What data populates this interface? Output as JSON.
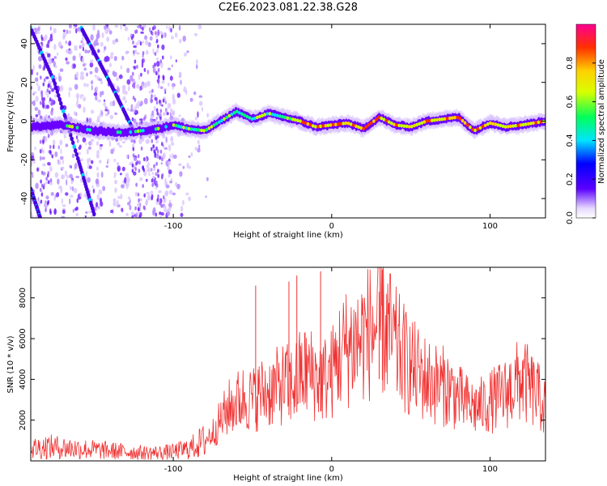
{
  "title": "C2E6.2023.081.22.38.G28",
  "colors": {
    "snr_line": "#f03232",
    "spectrogram_ridge_low": "#6a00ff",
    "spectrogram_ridge_high": "#ff2020",
    "scatter": "#9b6bff"
  },
  "chart_data": [
    {
      "type": "heatmap",
      "xlabel": "Height of straight line (km)",
      "ylabel": "Frequency (Hz)",
      "xlim": [
        -190,
        135
      ],
      "ylim": [
        -50,
        50
      ],
      "x_ticks": [
        -100,
        0,
        100
      ],
      "y_ticks": [
        -40,
        -20,
        0,
        20,
        40
      ],
      "colorbar": {
        "label": "Normalized spectral amplitude",
        "range": [
          0.0,
          1.0
        ],
        "ticks": [
          "0.0",
          "0.2",
          "0.4",
          "0.6",
          "0.8"
        ]
      },
      "ridge": {
        "x": [
          -190,
          -170,
          -150,
          -130,
          -110,
          -100,
          -90,
          -80,
          -70,
          -60,
          -50,
          -40,
          -30,
          -20,
          -10,
          0,
          10,
          20,
          30,
          40,
          50,
          60,
          70,
          80,
          90,
          100,
          110,
          120,
          135
        ],
        "y": [
          -3,
          -2,
          -5,
          -6,
          -4,
          -2,
          -4,
          -5,
          0,
          5,
          1,
          4,
          2,
          0,
          -3,
          -2,
          -1,
          -4,
          2,
          -2,
          -3,
          0,
          1,
          2,
          -5,
          -1,
          -3,
          -2,
          0
        ]
      },
      "diagonal_tracks": [
        {
          "x": [
            -190,
            -175,
            -160,
            -150
          ],
          "y": [
            48,
            20,
            -20,
            -48
          ]
        },
        {
          "x": [
            -158,
            -140,
            -125
          ],
          "y": [
            48,
            20,
            -5
          ]
        },
        {
          "x": [
            -190,
            -184
          ],
          "y": [
            -35,
            -50
          ]
        }
      ]
    },
    {
      "type": "line",
      "xlabel": "Height of straight line (km)",
      "ylabel": "SNR (10 * v/v)",
      "xlim": [
        -190,
        135
      ],
      "ylim": [
        0,
        9500
      ],
      "x_ticks": [
        -100,
        0,
        100
      ],
      "y_ticks": [
        2000,
        4000,
        6000,
        8000
      ],
      "series": [
        {
          "x": [
            -190,
            -180,
            -170,
            -160,
            -150,
            -140,
            -130,
            -120,
            -110,
            -100,
            -90,
            -80,
            -75,
            -70,
            -65,
            -60,
            -55,
            -50,
            -45,
            -40,
            -35,
            -30,
            -25,
            -20,
            -15,
            -10,
            -5,
            0,
            5,
            10,
            15,
            20,
            25,
            30,
            35,
            40,
            45,
            50,
            55,
            60,
            65,
            70,
            75,
            80,
            85,
            90,
            95,
            100,
            105,
            110,
            115,
            120,
            125,
            130,
            135
          ],
          "y": [
            600,
            700,
            650,
            600,
            550,
            500,
            450,
            400,
            400,
            450,
            600,
            1000,
            1400,
            2000,
            2600,
            2900,
            3100,
            3000,
            3300,
            3400,
            3600,
            3800,
            3700,
            4200,
            4400,
            4100,
            4000,
            4300,
            5200,
            5600,
            5800,
            6100,
            6400,
            6700,
            6500,
            5600,
            5100,
            4600,
            4300,
            4000,
            3800,
            3700,
            3500,
            3100,
            2800,
            2600,
            2700,
            2900,
            3100,
            3300,
            3700,
            4000,
            3600,
            3200,
            2600
          ]
        }
      ],
      "spikes": [
        {
          "x": -48,
          "y": 8600
        },
        {
          "x": -27,
          "y": 8800
        },
        {
          "x": -22,
          "y": 9100
        },
        {
          "x": -7,
          "y": 9300
        },
        {
          "x": 32,
          "y": 9400
        },
        {
          "x": 30,
          "y": 8300
        }
      ]
    }
  ]
}
